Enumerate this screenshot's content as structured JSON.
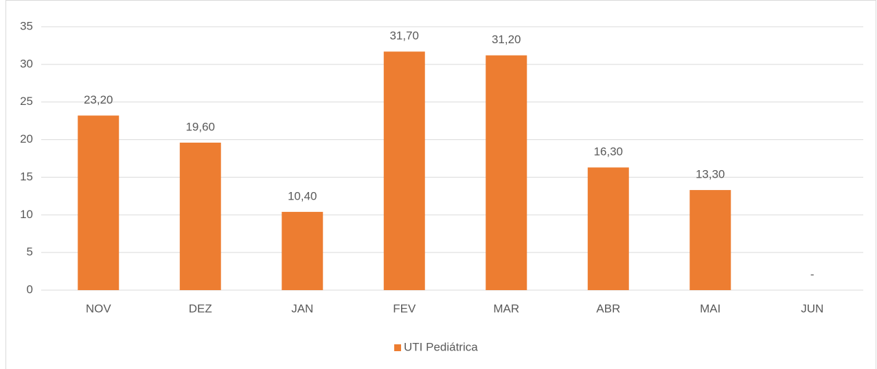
{
  "chart_data": {
    "type": "bar",
    "categories": [
      "NOV",
      "DEZ",
      "JAN",
      "FEV",
      "MAR",
      "ABR",
      "MAI",
      "JUN"
    ],
    "series": [
      {
        "name": "UTI Pediátrica",
        "color": "#ed7d31",
        "values": [
          23.2,
          19.6,
          10.4,
          31.7,
          31.2,
          16.3,
          13.3,
          0
        ],
        "value_labels": [
          "23,20",
          "19,60",
          "10,40",
          "31,70",
          "31,20",
          "16,30",
          "13,30",
          "-"
        ]
      }
    ],
    "ylim": [
      0,
      35
    ],
    "yticks": [
      0,
      5,
      10,
      15,
      20,
      25,
      30,
      35
    ],
    "grid": true,
    "legend": "bottom"
  }
}
